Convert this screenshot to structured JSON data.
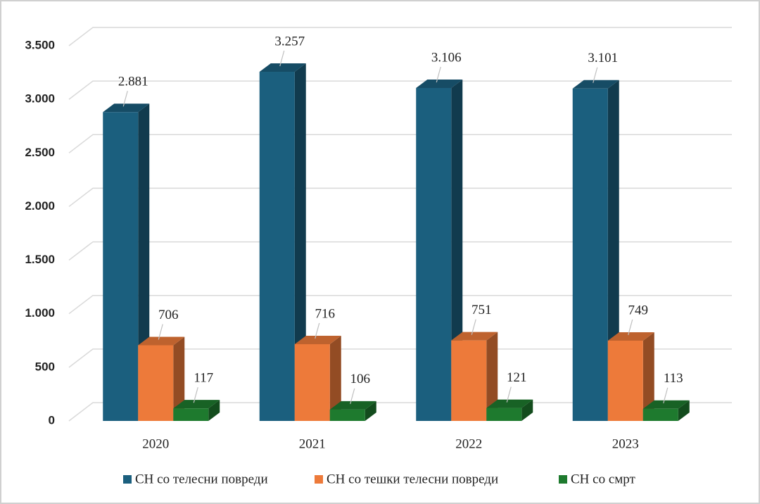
{
  "chart_data": {
    "type": "bar3d",
    "categories": [
      "2020",
      "2021",
      "2022",
      "2023"
    ],
    "series": [
      {
        "name": "СН со телесни повреди",
        "color": "#1b5f7e",
        "values": [
          2881,
          3257,
          3106,
          3101
        ],
        "value_labels": [
          "2.881",
          "3.257",
          "3.106",
          "3.101"
        ]
      },
      {
        "name": "СН со тешки телесни повреди",
        "color": "#ed7a3a",
        "values": [
          706,
          716,
          751,
          749
        ]
      },
      {
        "name": "СН со смрт",
        "color": "#1e7a2e",
        "values": [
          117,
          106,
          121,
          113
        ]
      }
    ],
    "ylim": [
      0,
      3500
    ],
    "yticks": [
      0,
      500,
      {
        "value": 1000,
        "label": "1.000"
      },
      {
        "value": 1500,
        "label": "1.500"
      },
      {
        "value": 2000,
        "label": "2.000"
      },
      {
        "value": 2500,
        "label": "2.500"
      },
      {
        "value": 3000,
        "label": "3.000"
      },
      {
        "value": 3500,
        "label": "3.500"
      }
    ],
    "grid": true,
    "legend": "bottom"
  }
}
